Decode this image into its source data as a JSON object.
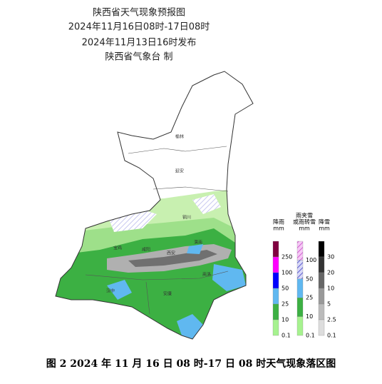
{
  "header": {
    "title": "陕西省天气现象预报图",
    "period": "2024年11月16日08时-17日08时",
    "issued": "2024年11月13日16时发布",
    "issuer": "陕西省气象台 制"
  },
  "cities": [
    {
      "label": "榆林"
    },
    {
      "label": "延安"
    },
    {
      "label": "铜川"
    },
    {
      "label": "宝鸡"
    },
    {
      "label": "咸阳"
    },
    {
      "label": "西安"
    },
    {
      "label": "渭南"
    },
    {
      "label": "汉中"
    },
    {
      "label": "安康"
    },
    {
      "label": "商洛"
    }
  ],
  "legend": {
    "columns": [
      {
        "title": [
          "降雨",
          "mm"
        ],
        "labels": [
          "250",
          "100",
          "50",
          "25",
          "10",
          "0.1"
        ]
      },
      {
        "title": [
          "雨夹雪",
          "或雨转雪",
          "mm"
        ],
        "labels": [
          "100",
          "50",
          "25",
          "10",
          "0.1"
        ]
      },
      {
        "title": [
          "降雪",
          "mm"
        ],
        "labels": [
          "30",
          "20",
          "10",
          "5",
          "2.5",
          "0.1"
        ]
      }
    ]
  },
  "caption": "图 2 2024 年 11 月 16 日 08 时-17 日 08 时天气现象落区图"
}
